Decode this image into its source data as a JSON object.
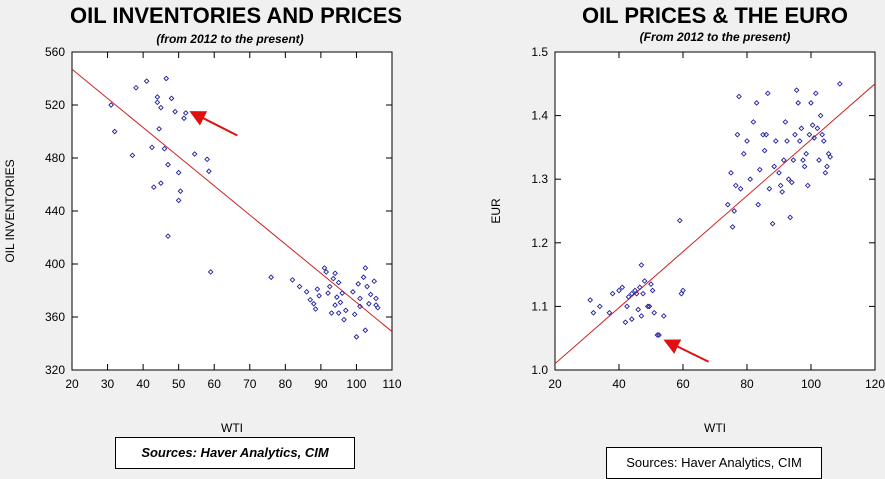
{
  "chart_data": [
    {
      "type": "scatter",
      "title": "OIL INVENTORIES AND PRICES",
      "subtitle": "(from 2012 to the present)",
      "xlabel": "WTI",
      "ylabel": "OIL INVENTORIES",
      "xlim": [
        20,
        110
      ],
      "ylim": [
        320,
        560
      ],
      "xticks": [
        "20",
        "30",
        "40",
        "50",
        "60",
        "70",
        "80",
        "90",
        "100",
        "110"
      ],
      "yticks": [
        "320",
        "360",
        "400",
        "440",
        "480",
        "520",
        "560"
      ],
      "source": "Sources:  Haver Analytics, CIM",
      "point_color": "#1f1fa0",
      "line_color": "#d02020",
      "arrow_color": "#e01010",
      "trendline": {
        "x": [
          20,
          110
        ],
        "y": [
          547,
          349
        ]
      },
      "arrow": {
        "from": [
          66.5,
          497
        ],
        "to": [
          54,
          514
        ]
      },
      "points": [
        [
          31,
          520
        ],
        [
          32,
          500
        ],
        [
          37,
          482
        ],
        [
          38,
          533
        ],
        [
          41,
          538
        ],
        [
          42.5,
          488
        ],
        [
          43,
          458
        ],
        [
          44,
          526
        ],
        [
          44,
          522
        ],
        [
          44.5,
          502
        ],
        [
          45,
          518
        ],
        [
          45,
          461
        ],
        [
          46,
          487
        ],
        [
          46.5,
          540
        ],
        [
          47,
          475
        ],
        [
          47,
          421
        ],
        [
          48,
          525
        ],
        [
          49,
          515
        ],
        [
          50,
          469
        ],
        [
          50,
          448
        ],
        [
          50.5,
          455
        ],
        [
          51.5,
          510
        ],
        [
          52,
          514
        ],
        [
          54.5,
          483
        ],
        [
          58,
          479
        ],
        [
          58.5,
          470
        ],
        [
          59,
          394
        ],
        [
          76,
          390
        ],
        [
          82,
          388
        ],
        [
          84,
          383
        ],
        [
          86,
          379
        ],
        [
          87,
          373
        ],
        [
          88,
          370
        ],
        [
          88.5,
          366
        ],
        [
          89,
          381
        ],
        [
          89.5,
          376
        ],
        [
          91,
          397
        ],
        [
          91.5,
          394
        ],
        [
          92,
          378
        ],
        [
          92.5,
          383
        ],
        [
          93,
          363
        ],
        [
          93.5,
          389
        ],
        [
          94,
          369
        ],
        [
          94,
          393
        ],
        [
          94.5,
          375
        ],
        [
          95,
          363
        ],
        [
          95,
          386
        ],
        [
          95.5,
          371
        ],
        [
          96,
          378
        ],
        [
          96.5,
          358
        ],
        [
          97,
          365
        ],
        [
          99,
          379
        ],
        [
          99.5,
          362
        ],
        [
          100,
          345
        ],
        [
          100.5,
          385
        ],
        [
          101,
          368
        ],
        [
          101,
          374
        ],
        [
          102,
          390
        ],
        [
          102.5,
          397
        ],
        [
          102.5,
          350
        ],
        [
          103,
          383
        ],
        [
          103.5,
          370
        ],
        [
          104,
          377
        ],
        [
          105,
          387
        ],
        [
          105.5,
          369
        ],
        [
          105.5,
          374
        ],
        [
          106,
          367
        ]
      ]
    },
    {
      "type": "scatter",
      "title": "OIL PRICES & THE EURO",
      "subtitle": "(From 2012 to the present)",
      "xlabel": "WTI",
      "ylabel": "EUR",
      "xlim": [
        20,
        120
      ],
      "ylim": [
        1.0,
        1.5
      ],
      "xticks": [
        "20",
        "40",
        "60",
        "80",
        "100",
        "120"
      ],
      "yticks": [
        "1.0",
        "1.1",
        "1.2",
        "1.3",
        "1.4",
        "1.5"
      ],
      "source": "Sources:  Haver Analytics, CIM",
      "point_color": "#1f1fa0",
      "line_color": "#d02020",
      "arrow_color": "#e01010",
      "trendline": {
        "x": [
          20,
          120
        ],
        "y": [
          1.01,
          1.45
        ]
      },
      "arrow": {
        "from": [
          68,
          1.013
        ],
        "to": [
          55,
          1.045
        ]
      },
      "points": [
        [
          31,
          1.11
        ],
        [
          32,
          1.09
        ],
        [
          34,
          1.1
        ],
        [
          37,
          1.09
        ],
        [
          38,
          1.12
        ],
        [
          40,
          1.125
        ],
        [
          41,
          1.13
        ],
        [
          42,
          1.075
        ],
        [
          42.5,
          1.1
        ],
        [
          43,
          1.115
        ],
        [
          44,
          1.12
        ],
        [
          44,
          1.08
        ],
        [
          45,
          1.125
        ],
        [
          45.5,
          1.12
        ],
        [
          46,
          1.095
        ],
        [
          46.5,
          1.13
        ],
        [
          47,
          1.165
        ],
        [
          47,
          1.085
        ],
        [
          47.5,
          1.12
        ],
        [
          48,
          1.14
        ],
        [
          49,
          1.1
        ],
        [
          49.5,
          1.1
        ],
        [
          50,
          1.135
        ],
        [
          50.5,
          1.125
        ],
        [
          51,
          1.09
        ],
        [
          52,
          1.055
        ],
        [
          52.5,
          1.055
        ],
        [
          54,
          1.085
        ],
        [
          59,
          1.235
        ],
        [
          59.5,
          1.12
        ],
        [
          60,
          1.125
        ],
        [
          74,
          1.26
        ],
        [
          75,
          1.31
        ],
        [
          75.5,
          1.225
        ],
        [
          76,
          1.25
        ],
        [
          76.5,
          1.29
        ],
        [
          77,
          1.37
        ],
        [
          77.5,
          1.43
        ],
        [
          78,
          1.285
        ],
        [
          79,
          1.34
        ],
        [
          80,
          1.36
        ],
        [
          81,
          1.3
        ],
        [
          82,
          1.39
        ],
        [
          83,
          1.42
        ],
        [
          83.5,
          1.26
        ],
        [
          84,
          1.315
        ],
        [
          85,
          1.37
        ],
        [
          85.5,
          1.345
        ],
        [
          86,
          1.37
        ],
        [
          86.5,
          1.435
        ],
        [
          87,
          1.285
        ],
        [
          88,
          1.23
        ],
        [
          88.5,
          1.32
        ],
        [
          89,
          1.36
        ],
        [
          90,
          1.31
        ],
        [
          90.5,
          1.29
        ],
        [
          91,
          1.28
        ],
        [
          91.5,
          1.33
        ],
        [
          92,
          1.39
        ],
        [
          92.5,
          1.36
        ],
        [
          93,
          1.3
        ],
        [
          93.5,
          1.24
        ],
        [
          94,
          1.295
        ],
        [
          94.5,
          1.33
        ],
        [
          95,
          1.37
        ],
        [
          95.5,
          1.44
        ],
        [
          96,
          1.42
        ],
        [
          96.5,
          1.36
        ],
        [
          97,
          1.38
        ],
        [
          97.5,
          1.33
        ],
        [
          98,
          1.32
        ],
        [
          98.5,
          1.34
        ],
        [
          99,
          1.29
        ],
        [
          99.5,
          1.37
        ],
        [
          100,
          1.42
        ],
        [
          100.5,
          1.385
        ],
        [
          101,
          1.365
        ],
        [
          101.5,
          1.435
        ],
        [
          102,
          1.38
        ],
        [
          102.5,
          1.33
        ],
        [
          103,
          1.4
        ],
        [
          103.5,
          1.37
        ],
        [
          104,
          1.36
        ],
        [
          104.5,
          1.31
        ],
        [
          105,
          1.32
        ],
        [
          105.5,
          1.34
        ],
        [
          106,
          1.335
        ],
        [
          109,
          1.45
        ]
      ]
    }
  ]
}
